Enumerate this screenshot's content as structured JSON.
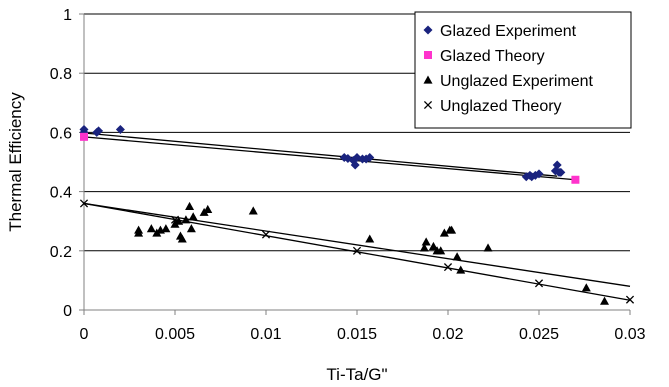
{
  "chart_data": {
    "type": "scatter",
    "title": "",
    "xlabel": "Ti-Ta/G\"",
    "ylabel": "Thermal Efficiency",
    "xlim": [
      0,
      0.03
    ],
    "ylim": [
      0,
      1
    ],
    "x_ticks": [
      "0",
      "0.005",
      "0.01",
      "0.015",
      "0.02",
      "0.025",
      "0.03"
    ],
    "y_ticks": [
      "0",
      "0.2",
      "0.4",
      "0.6",
      "0.8",
      "1"
    ],
    "grid": "horizontal",
    "legend_position": "top-right",
    "series": [
      {
        "name": "Glazed Experiment",
        "marker": "diamond",
        "color": "#1a237e",
        "points": [
          [
            0.0,
            0.61
          ],
          [
            0.0,
            0.6
          ],
          [
            0.0007,
            0.6
          ],
          [
            0.0008,
            0.605
          ],
          [
            0.002,
            0.61
          ],
          [
            0.0143,
            0.515
          ],
          [
            0.0145,
            0.512
          ],
          [
            0.0148,
            0.505
          ],
          [
            0.0149,
            0.49
          ],
          [
            0.015,
            0.515
          ],
          [
            0.0153,
            0.51
          ],
          [
            0.0155,
            0.51
          ],
          [
            0.0157,
            0.515
          ],
          [
            0.0243,
            0.45
          ],
          [
            0.0245,
            0.455
          ],
          [
            0.0246,
            0.45
          ],
          [
            0.0248,
            0.455
          ],
          [
            0.025,
            0.46
          ],
          [
            0.0259,
            0.47
          ],
          [
            0.026,
            0.49
          ],
          [
            0.0261,
            0.465
          ],
          [
            0.0262,
            0.465
          ]
        ]
      },
      {
        "name": "Glazed Theory",
        "marker": "square",
        "color": "#ff33cc",
        "points": [
          [
            0.0,
            0.585
          ],
          [
            0.027,
            0.44
          ]
        ]
      },
      {
        "name": "Unglazed Experiment",
        "marker": "triangle",
        "color": "#000000",
        "points": [
          [
            0.003,
            0.27
          ],
          [
            0.003,
            0.26
          ],
          [
            0.0037,
            0.275
          ],
          [
            0.004,
            0.26
          ],
          [
            0.0042,
            0.27
          ],
          [
            0.0045,
            0.275
          ],
          [
            0.005,
            0.29
          ],
          [
            0.0052,
            0.3
          ],
          [
            0.0053,
            0.25
          ],
          [
            0.0054,
            0.24
          ],
          [
            0.0056,
            0.305
          ],
          [
            0.0058,
            0.35
          ],
          [
            0.0059,
            0.275
          ],
          [
            0.006,
            0.315
          ],
          [
            0.0066,
            0.33
          ],
          [
            0.0068,
            0.34
          ],
          [
            0.0093,
            0.335
          ],
          [
            0.0157,
            0.24
          ],
          [
            0.0187,
            0.21
          ],
          [
            0.0188,
            0.23
          ],
          [
            0.0192,
            0.215
          ],
          [
            0.0194,
            0.2
          ],
          [
            0.0196,
            0.2
          ],
          [
            0.0198,
            0.26
          ],
          [
            0.0201,
            0.27
          ],
          [
            0.0202,
            0.27
          ],
          [
            0.0205,
            0.18
          ],
          [
            0.0207,
            0.135
          ],
          [
            0.0222,
            0.21
          ],
          [
            0.0276,
            0.075
          ],
          [
            0.0286,
            0.03
          ]
        ]
      },
      {
        "name": "Unglazed Theory",
        "marker": "x",
        "color": "#000000",
        "points": [
          [
            0.0,
            0.36
          ],
          [
            0.005,
            0.305
          ],
          [
            0.01,
            0.255
          ],
          [
            0.015,
            0.2
          ],
          [
            0.02,
            0.145
          ],
          [
            0.025,
            0.09
          ],
          [
            0.03,
            0.035
          ]
        ]
      }
    ],
    "trendlines": [
      {
        "series": "Glazed Experiment",
        "from": [
          0.0,
          0.598
        ],
        "to": [
          0.026,
          0.452
        ]
      },
      {
        "series": "Glazed Theory",
        "from": [
          0.0,
          0.585
        ],
        "to": [
          0.027,
          0.44
        ]
      },
      {
        "series": "Unglazed Experiment",
        "from": [
          0.0,
          0.36
        ],
        "to": [
          0.03,
          0.08
        ]
      },
      {
        "series": "Unglazed Theory",
        "from": [
          0.0,
          0.36
        ],
        "to": [
          0.03,
          0.033
        ]
      }
    ]
  }
}
